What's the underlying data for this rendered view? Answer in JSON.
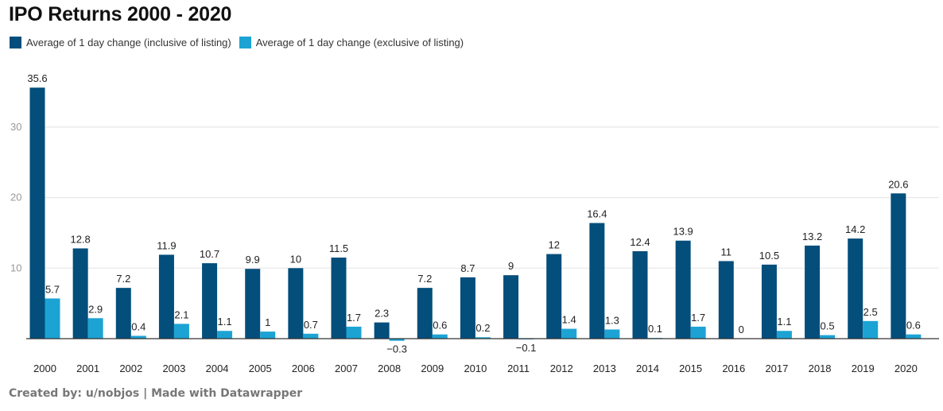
{
  "header": {
    "title": "IPO Returns 2000 - 2020"
  },
  "footer": {
    "credit": "Created by: u/nobjos | Made with Datawrapper"
  },
  "colors": {
    "inclusive": "#034e7b",
    "exclusive": "#1ca3d3",
    "grid": "#e3e3e3",
    "axis": "#333333"
  },
  "chart_data": {
    "type": "bar",
    "title": "IPO Returns 2000 - 2020",
    "xlabel": "",
    "ylabel": "",
    "ylim": [
      -0.7,
      38
    ],
    "yticks": [
      10,
      20,
      30
    ],
    "grid": true,
    "legend": "top-left",
    "categories": [
      "2000",
      "2001",
      "2002",
      "2003",
      "2004",
      "2005",
      "2006",
      "2007",
      "2008",
      "2009",
      "2010",
      "2011",
      "2012",
      "2013",
      "2014",
      "2015",
      "2016",
      "2017",
      "2018",
      "2019",
      "2020"
    ],
    "series": [
      {
        "name": "Average of 1 day change (inclusive of listing)",
        "values": [
          35.6,
          12.8,
          7.2,
          11.9,
          10.7,
          9.9,
          10,
          11.5,
          2.3,
          7.2,
          8.7,
          9,
          12,
          16.4,
          12.4,
          13.9,
          11,
          10.5,
          13.2,
          14.2,
          20.6
        ]
      },
      {
        "name": "Average of 1 day change (exclusive of listing)",
        "values": [
          5.7,
          2.9,
          0.4,
          2.1,
          1.1,
          1,
          0.7,
          1.7,
          -0.3,
          0.6,
          0.2,
          -0.1,
          1.4,
          1.3,
          0.1,
          1.7,
          0,
          1.1,
          0.5,
          2.5,
          0.6
        ]
      }
    ]
  }
}
